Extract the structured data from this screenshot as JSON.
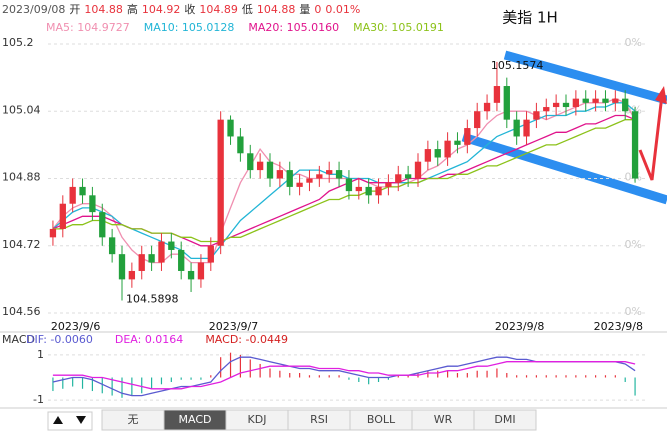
{
  "chart_data": {
    "type": "candlestick",
    "title": "美指 1H",
    "info": [
      "2023/09/08",
      "开",
      "104.88",
      "高",
      "104.92",
      "收",
      "104.89",
      "低",
      "104.88",
      "量",
      "0",
      "0.01%"
    ],
    "categories": [
      "2023/9/6",
      null,
      null,
      null,
      null,
      null,
      null,
      null,
      null,
      null,
      null,
      null,
      null,
      null,
      null,
      null,
      "2023/9/7",
      null,
      null,
      null,
      null,
      null,
      null,
      null,
      null,
      null,
      null,
      null,
      null,
      null,
      null,
      null,
      null,
      null,
      null,
      null,
      null,
      null,
      null,
      null,
      null,
      null,
      null,
      null,
      null,
      "2023/9/8",
      null,
      null,
      null,
      null,
      null,
      null,
      null,
      null,
      null,
      "2023/9/8",
      null,
      null,
      null,
      null
    ],
    "open": [
      104.74,
      104.76,
      104.82,
      104.86,
      104.84,
      104.8,
      104.74,
      104.7,
      104.64,
      104.66,
      104.7,
      104.68,
      104.73,
      104.71,
      104.66,
      104.64,
      104.68,
      104.72,
      105.02,
      104.98,
      104.94,
      104.9,
      104.92,
      104.88,
      104.9,
      104.86,
      104.87,
      104.88,
      104.89,
      104.9,
      104.88,
      104.85,
      104.86,
      104.84,
      104.86,
      104.87,
      104.89,
      104.88,
      104.92,
      104.95,
      104.93,
      104.97,
      104.96,
      105.0,
      105.04,
      105.06,
      105.1,
      105.02,
      104.98,
      105.02,
      105.04,
      105.05,
      105.06,
      105.05,
      105.07,
      105.06,
      105.07,
      105.06,
      105.07,
      105.04
    ],
    "close": [
      104.76,
      104.82,
      104.86,
      104.84,
      104.8,
      104.74,
      104.7,
      104.64,
      104.66,
      104.7,
      104.68,
      104.73,
      104.71,
      104.66,
      104.64,
      104.68,
      104.72,
      105.02,
      104.98,
      104.94,
      104.9,
      104.92,
      104.88,
      104.9,
      104.86,
      104.87,
      104.88,
      104.89,
      104.9,
      104.88,
      104.85,
      104.86,
      104.84,
      104.86,
      104.87,
      104.89,
      104.88,
      104.92,
      104.95,
      104.93,
      104.97,
      104.96,
      105.0,
      105.04,
      105.06,
      105.1,
      105.02,
      104.98,
      105.02,
      105.04,
      105.05,
      105.06,
      105.05,
      105.07,
      105.06,
      105.07,
      105.06,
      105.07,
      105.04,
      104.88
    ],
    "high": [
      104.78,
      104.84,
      104.88,
      104.88,
      104.86,
      104.82,
      104.76,
      104.72,
      104.68,
      104.72,
      104.72,
      104.75,
      104.75,
      104.73,
      104.68,
      104.7,
      104.74,
      105.04,
      105.03,
      105.0,
      104.96,
      104.94,
      104.94,
      104.92,
      104.92,
      104.89,
      104.9,
      104.91,
      104.92,
      104.92,
      104.9,
      104.88,
      104.88,
      104.88,
      104.89,
      104.91,
      104.91,
      104.94,
      104.97,
      104.97,
      104.99,
      104.99,
      105.02,
      105.06,
      105.08,
      105.1574,
      105.12,
      105.04,
      105.04,
      105.06,
      105.07,
      105.08,
      105.08,
      105.09,
      105.09,
      105.09,
      105.09,
      105.09,
      105.09,
      105.05
    ],
    "low": [
      104.72,
      104.74,
      104.8,
      104.82,
      104.78,
      104.72,
      104.68,
      104.5898,
      104.62,
      104.64,
      104.66,
      104.66,
      104.69,
      104.64,
      104.61,
      104.62,
      104.66,
      104.7,
      104.96,
      104.92,
      104.88,
      104.88,
      104.86,
      104.86,
      104.84,
      104.84,
      104.85,
      104.86,
      104.87,
      104.86,
      104.83,
      104.83,
      104.82,
      104.82,
      104.84,
      104.85,
      104.86,
      104.86,
      104.9,
      104.91,
      104.91,
      104.94,
      104.94,
      104.98,
      105.02,
      105.04,
      105.0,
      104.96,
      104.96,
      105.0,
      105.02,
      105.03,
      105.03,
      105.03,
      105.04,
      105.04,
      105.04,
      105.04,
      105.02,
      104.87
    ],
    "up_color": "#e8323c",
    "down_color": "#22a03c",
    "ylim": [
      104.56,
      105.2
    ],
    "yticks": [
      104.56,
      104.72,
      104.88,
      105.04,
      105.2
    ],
    "right_tick_labels": [
      "0%",
      "0%",
      "0%",
      "0%",
      "0%"
    ],
    "grid": true,
    "series": [
      {
        "name": "MA5: 104.9727",
        "color": "#f08fb0",
        "values": [
          104.76,
          104.79,
          104.81,
          104.82,
          104.82,
          104.81,
          104.79,
          104.74,
          104.71,
          104.69,
          104.68,
          104.68,
          104.7,
          104.7,
          104.68,
          104.68,
          104.68,
          104.75,
          104.81,
          104.87,
          104.91,
          104.95,
          104.92,
          104.91,
          104.89,
          104.89,
          104.88,
          104.88,
          104.88,
          104.88,
          104.88,
          104.88,
          104.87,
          104.86,
          104.86,
          104.86,
          104.87,
          104.88,
          104.9,
          104.91,
          104.93,
          104.95,
          104.96,
          104.98,
          105.01,
          105.03,
          105.04,
          105.04,
          105.04,
          105.03,
          105.02,
          105.03,
          105.04,
          105.05,
          105.06,
          105.06,
          105.06,
          105.07,
          105.06,
          105.02
        ]
      },
      {
        "name": "MA10: 105.0128",
        "color": "#22b5d6",
        "values": [
          104.76,
          104.78,
          104.8,
          104.81,
          104.81,
          104.8,
          104.79,
          104.77,
          104.76,
          104.75,
          104.74,
          104.73,
          104.72,
          104.71,
          104.69,
          104.69,
          104.69,
          104.72,
          104.75,
          104.78,
          104.8,
          104.82,
          104.84,
          104.86,
          104.88,
          104.9,
          104.9,
          104.9,
          104.89,
          104.89,
          104.88,
          104.88,
          104.88,
          104.87,
          104.87,
          104.87,
          104.87,
          104.87,
          104.88,
          104.89,
          104.9,
          104.91,
          104.92,
          104.94,
          104.96,
          104.98,
          104.99,
          105.0,
          105.01,
          105.02,
          105.03,
          105.03,
          105.03,
          105.04,
          105.04,
          105.05,
          105.05,
          105.06,
          105.06,
          105.04
        ]
      },
      {
        "name": "MA20: 105.0160",
        "color": "#e0148c",
        "values": [
          104.76,
          104.77,
          104.78,
          104.79,
          104.79,
          104.79,
          104.78,
          104.77,
          104.76,
          104.76,
          104.75,
          104.75,
          104.75,
          104.74,
          104.73,
          104.72,
          104.72,
          104.73,
          104.74,
          104.75,
          104.76,
          104.77,
          104.78,
          104.79,
          104.8,
          104.81,
          104.82,
          104.83,
          104.85,
          104.86,
          104.87,
          104.88,
          104.87,
          104.87,
          104.87,
          104.87,
          104.88,
          104.88,
          104.88,
          104.88,
          104.89,
          104.89,
          104.9,
          104.91,
          104.92,
          104.93,
          104.94,
          104.95,
          104.96,
          104.97,
          104.98,
          104.99,
          104.99,
          105.0,
          105.01,
          105.01,
          105.02,
          105.03,
          105.03,
          105.02
        ]
      },
      {
        "name": "MA30: 105.0191",
        "color": "#8cc21a",
        "values": [
          104.76,
          104.76,
          104.77,
          104.77,
          104.78,
          104.78,
          104.77,
          104.77,
          104.76,
          104.76,
          104.75,
          104.75,
          104.75,
          104.74,
          104.74,
          104.73,
          104.73,
          104.73,
          104.74,
          104.74,
          104.75,
          104.76,
          104.77,
          104.78,
          104.79,
          104.8,
          104.81,
          104.82,
          104.83,
          104.83,
          104.84,
          104.84,
          104.85,
          104.85,
          104.86,
          104.86,
          104.87,
          104.87,
          104.88,
          104.88,
          104.88,
          104.89,
          104.89,
          104.9,
          104.91,
          104.91,
          104.92,
          104.93,
          104.94,
          104.95,
          104.96,
          104.96,
          104.97,
          104.98,
          104.99,
          105.0,
          105.0,
          105.01,
          105.02,
          105.02
        ]
      }
    ],
    "macd": {
      "title": "MACD",
      "ylim": [
        -1.44,
        1.44
      ],
      "yticks": [
        -1,
        1
      ],
      "series": [
        {
          "name": "DIF: -0.0060",
          "color": "#5a5ad0",
          "values": [
            -0.2,
            -0.1,
            0,
            0,
            -0.1,
            -0.3,
            -0.5,
            -0.7,
            -0.8,
            -0.8,
            -0.7,
            -0.6,
            -0.5,
            -0.4,
            -0.4,
            -0.3,
            -0.2,
            0.3,
            0.7,
            0.9,
            0.9,
            0.8,
            0.7,
            0.6,
            0.5,
            0.4,
            0.4,
            0.3,
            0.3,
            0.3,
            0.2,
            0.1,
            0,
            0,
            0,
            0.1,
            0.1,
            0.2,
            0.3,
            0.4,
            0.5,
            0.5,
            0.6,
            0.7,
            0.8,
            0.9,
            0.9,
            0.8,
            0.8,
            0.7,
            0.7,
            0.7,
            0.7,
            0.7,
            0.7,
            0.7,
            0.7,
            0.7,
            0.6,
            0.3
          ]
        },
        {
          "name": "DEA: 0.0164",
          "color": "#e020e0",
          "values": [
            0.1,
            0.1,
            0.1,
            0.1,
            0,
            0,
            -0.1,
            -0.2,
            -0.3,
            -0.4,
            -0.5,
            -0.5,
            -0.5,
            -0.5,
            -0.4,
            -0.4,
            -0.3,
            -0.2,
            0,
            0.2,
            0.3,
            0.4,
            0.5,
            0.5,
            0.5,
            0.5,
            0.5,
            0.4,
            0.4,
            0.4,
            0.3,
            0.3,
            0.2,
            0.2,
            0.1,
            0.1,
            0.1,
            0.1,
            0.2,
            0.2,
            0.3,
            0.3,
            0.4,
            0.5,
            0.5,
            0.6,
            0.7,
            0.7,
            0.7,
            0.7,
            0.7,
            0.7,
            0.7,
            0.7,
            0.7,
            0.7,
            0.7,
            0.7,
            0.7,
            0.6
          ]
        },
        {
          "name": "MACD: -0.0449",
          "color": "#d42020",
          "values": [
            -0.6,
            -0.5,
            -0.4,
            -0.5,
            -0.6,
            -0.7,
            -0.8,
            -0.9,
            -0.8,
            -0.7,
            -0.5,
            -0.3,
            -0.2,
            -0.1,
            -0.1,
            -0.1,
            0.1,
            0.9,
            1.1,
            1.0,
            0.8,
            0.6,
            0.4,
            0.3,
            0.2,
            0.2,
            0.1,
            0.1,
            0.1,
            0.1,
            -0.1,
            -0.2,
            -0.3,
            -0.2,
            -0.1,
            0.1,
            0.1,
            0.2,
            0.3,
            0.3,
            0.3,
            0.2,
            0.2,
            0.3,
            0.3,
            0.4,
            0.2,
            0.1,
            0.1,
            0.1,
            0.1,
            0.1,
            0.1,
            0.1,
            0.1,
            0.1,
            0.1,
            0.1,
            -0.2,
            -0.8
          ]
        }
      ]
    },
    "tabs": [
      "无",
      "MACD",
      "KDJ",
      "RSI",
      "BOLL",
      "WR",
      "DMI"
    ],
    "selected_tab": 1
  }
}
